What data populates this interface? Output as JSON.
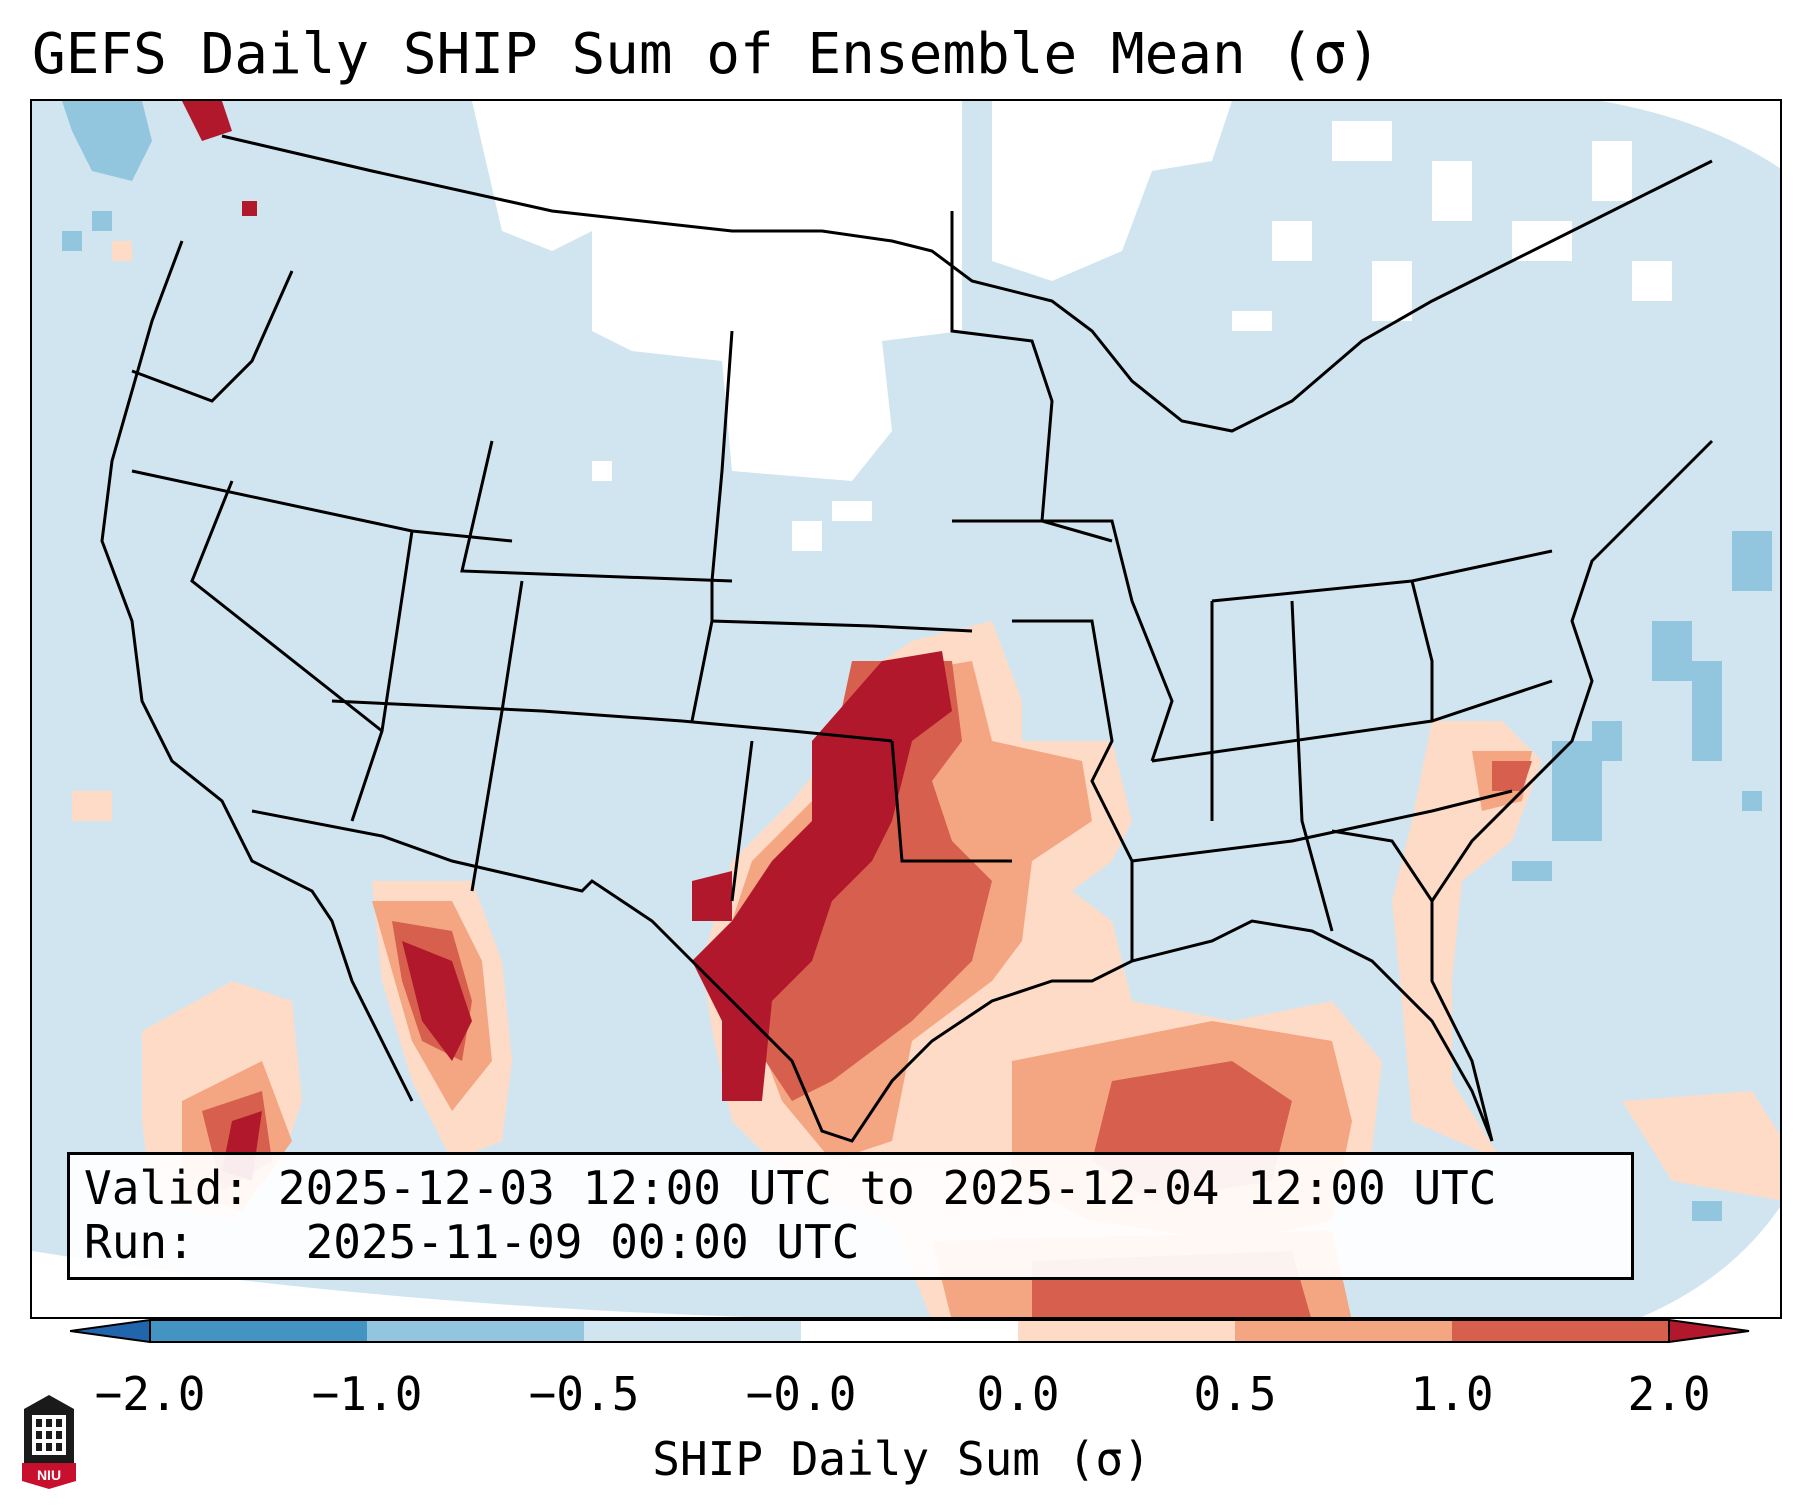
{
  "title": "GEFS Daily SHIP Sum of Ensemble Mean (σ)",
  "info": {
    "valid_label": "Valid:",
    "valid_value": "2025-12-03 12:00 UTC to 2025-12-04 12:00 UTC",
    "run_label": "Run:",
    "run_value": "2025-11-09 00:00 UTC"
  },
  "colorbar": {
    "label": "SHIP Daily Sum (σ)",
    "ticks": [
      "−2.0",
      "−1.0",
      "−0.5",
      "−0.0",
      "0.0",
      "0.5",
      "1.0",
      "2.0"
    ],
    "bins": [
      {
        "range": "< -2.0",
        "color": "#2166ac"
      },
      {
        "range": "-2.0 to -1.0",
        "color": "#4393c3"
      },
      {
        "range": "-1.0 to -0.5",
        "color": "#92c5de"
      },
      {
        "range": "-0.5 to -0.0",
        "color": "#d1e5f0"
      },
      {
        "range": "-0.0 to 0.0",
        "color": "#ffffff"
      },
      {
        "range": "0.0 to 0.5",
        "color": "#fddbc7"
      },
      {
        "range": "0.5 to 1.0",
        "color": "#f4a582"
      },
      {
        "range": "1.0 to 2.0",
        "color": "#d6604d"
      },
      {
        "range": "> 2.0",
        "color": "#b2182b"
      }
    ]
  },
  "map": {
    "region": "Contiguous United States, northern Mexico, Gulf of Mexico",
    "background_color": "#d1e5f0",
    "features": [
      {
        "name": "Southern Plains / Texas maximum",
        "category": "> 2.0",
        "color": "#b2182b"
      },
      {
        "name": "Gulf of Mexico anomaly",
        "category": "1.0 to 2.0",
        "color": "#d6604d"
      },
      {
        "name": "Baja California anomaly",
        "category": "> 2.0",
        "color": "#b2182b"
      },
      {
        "name": "Northern Plains near-zero",
        "category": "-0.0 to 0.0",
        "color": "#ffffff"
      },
      {
        "name": "Atlantic negative anomaly",
        "category": "-1.0 to -0.5",
        "color": "#92c5de"
      }
    ]
  },
  "logo": {
    "text": "NIU"
  }
}
